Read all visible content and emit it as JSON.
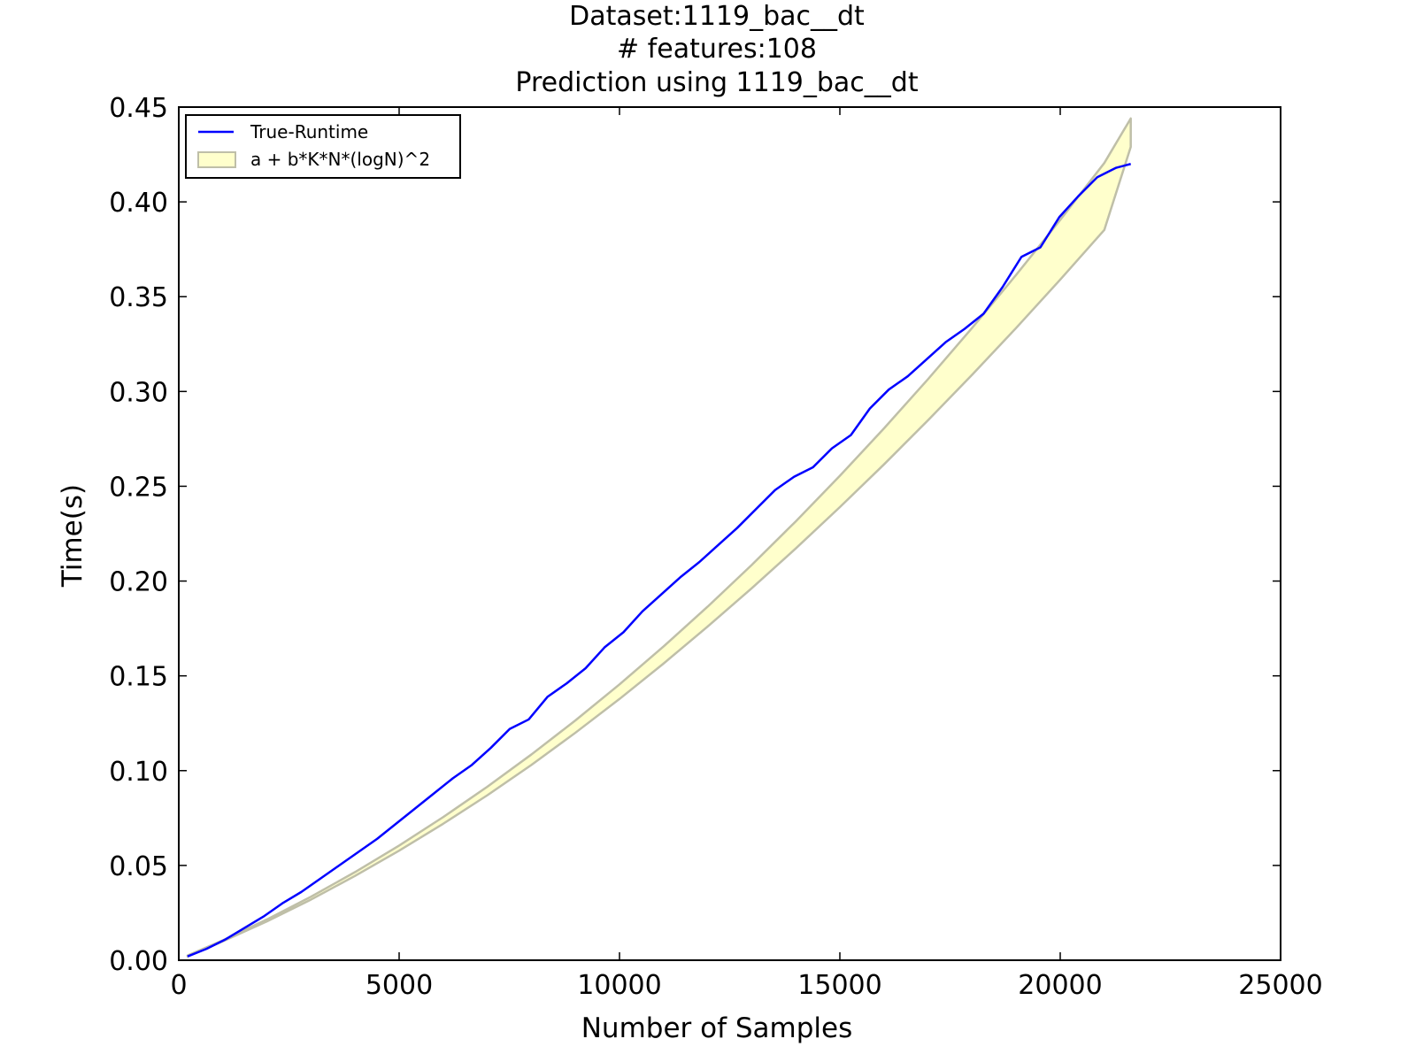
{
  "chart_data": {
    "type": "line",
    "title_lines": [
      "Dataset:1119_bac__dt",
      "# features:108",
      "Prediction using 1119_bac__dt"
    ],
    "xlabel": "Number of Samples",
    "ylabel": "Time(s)",
    "xlim": [
      0,
      25000
    ],
    "ylim": [
      0,
      0.45
    ],
    "xticks": [
      0,
      5000,
      10000,
      15000,
      20000,
      25000
    ],
    "xtick_labels": [
      "0",
      "5000",
      "10000",
      "15000",
      "20000",
      "25000"
    ],
    "yticks": [
      0,
      0.05,
      0.1,
      0.15,
      0.2,
      0.25,
      0.3,
      0.35,
      0.4,
      0.45
    ],
    "ytick_labels": [
      "0.00",
      "0.05",
      "0.10",
      "0.15",
      "0.20",
      "0.25",
      "0.30",
      "0.35",
      "0.40",
      "0.45"
    ],
    "grid": false,
    "legend_position": "top-left",
    "series": [
      {
        "name": "True-Runtime",
        "color": "#0000ff",
        "kind": "line",
        "x": [
          200,
          630,
          1060,
          1490,
          1920,
          2350,
          2780,
          3210,
          3640,
          4070,
          4500,
          4930,
          5360,
          5790,
          6220,
          6650,
          7080,
          7510,
          7940,
          8370,
          8800,
          9230,
          9660,
          10090,
          10520,
          10950,
          11380,
          11810,
          12240,
          12670,
          13100,
          13530,
          13960,
          14390,
          14820,
          15250,
          15680,
          16110,
          16540,
          16970,
          17400,
          17830,
          18260,
          18690,
          19120,
          19550,
          19980,
          20410,
          20840,
          21270,
          21600
        ],
        "y": [
          0.002,
          0.006,
          0.011,
          0.017,
          0.023,
          0.03,
          0.036,
          0.043,
          0.05,
          0.057,
          0.064,
          0.072,
          0.08,
          0.088,
          0.096,
          0.103,
          0.112,
          0.122,
          0.127,
          0.139,
          0.146,
          0.154,
          0.165,
          0.173,
          0.184,
          0.193,
          0.202,
          0.21,
          0.219,
          0.228,
          0.238,
          0.248,
          0.255,
          0.26,
          0.27,
          0.277,
          0.291,
          0.301,
          0.308,
          0.317,
          0.326,
          0.333,
          0.341,
          0.355,
          0.371,
          0.376,
          0.392,
          0.403,
          0.413,
          0.418,
          0.42
        ]
      },
      {
        "name": "a + b*K*N*(logN)^2",
        "color": "#ffffcc",
        "edge_color": "#bfbfa8",
        "kind": "band",
        "x": [
          200,
          1000,
          2000,
          3000,
          4000,
          5000,
          6000,
          7000,
          8000,
          9000,
          10000,
          11000,
          12000,
          13000,
          14000,
          15000,
          16000,
          17000,
          18000,
          19000,
          20000,
          21000,
          21600
        ],
        "upper": [
          0.0025,
          0.0105,
          0.0215,
          0.0335,
          0.0465,
          0.0605,
          0.0755,
          0.0915,
          0.1085,
          0.1265,
          0.1455,
          0.1655,
          0.1865,
          0.2085,
          0.2315,
          0.2555,
          0.2805,
          0.3065,
          0.3335,
          0.3615,
          0.3905,
          0.4205,
          0.444
        ],
        "lower": [
          0.002,
          0.01,
          0.0205,
          0.032,
          0.0445,
          0.0578,
          0.072,
          0.087,
          0.103,
          0.12,
          0.1378,
          0.1565,
          0.176,
          0.1962,
          0.2172,
          0.239,
          0.2615,
          0.2848,
          0.3088,
          0.3335,
          0.359,
          0.3852,
          0.429
        ]
      }
    ]
  }
}
